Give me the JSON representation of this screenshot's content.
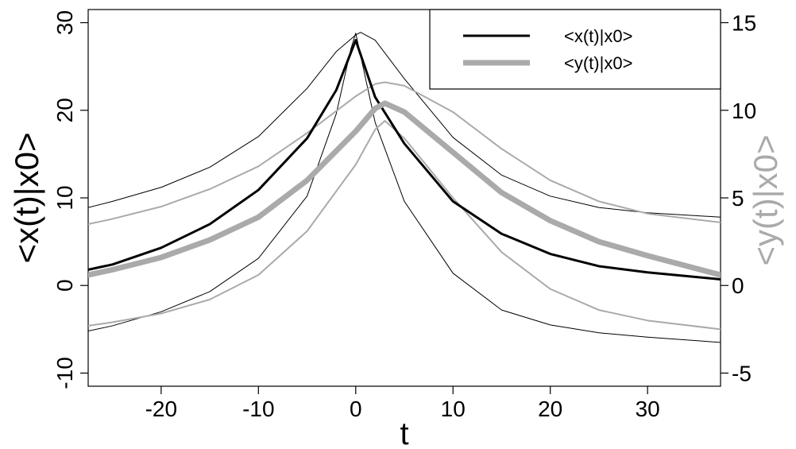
{
  "chart_data": {
    "type": "line",
    "xlabel": "t",
    "ylabel_left": "<x(t)|x0>",
    "ylabel_right": "<y(t)|x0>",
    "xlim": [
      -27.5,
      37.5
    ],
    "ylim_left": [
      -11.5,
      31.5
    ],
    "ylim_right": [
      -5.75,
      15.75
    ],
    "x_ticks": [
      -20,
      -10,
      0,
      10,
      20,
      30
    ],
    "x_tick_labels": [
      "-20",
      "-10",
      "0",
      "10",
      "20",
      "30"
    ],
    "y_left_ticks": [
      -10,
      0,
      10,
      20,
      30
    ],
    "y_left_tick_labels": [
      "-10",
      "0",
      "10",
      "20",
      "30"
    ],
    "y_right_ticks": [
      -5,
      0,
      5,
      10,
      15
    ],
    "y_right_tick_labels": [
      "-5",
      "0",
      "5",
      "10",
      "15"
    ],
    "legend": {
      "placement": "top-right",
      "entries": [
        {
          "label": "<x(t)|x0>",
          "color": "#000000",
          "style": "thick"
        },
        {
          "label": "<y(t)|x0>",
          "color": "#aaaaaa",
          "style": "thick"
        }
      ]
    },
    "colors": {
      "x_series": "#000000",
      "y_series": "#aaaaaa"
    },
    "series": [
      {
        "axis": "left",
        "role": "mean",
        "color": "#000000",
        "width": "thick",
        "x": [
          -27.5,
          -25,
          -20,
          -15,
          -10,
          -5,
          -2,
          0,
          2,
          5,
          10,
          15,
          20,
          25,
          30,
          37.5
        ],
        "y": [
          1.8,
          2.4,
          4.3,
          7.0,
          10.9,
          16.8,
          22.3,
          28.0,
          21.5,
          16.2,
          9.6,
          5.9,
          3.6,
          2.2,
          1.5,
          0.7
        ]
      },
      {
        "axis": "left",
        "role": "upper",
        "color": "#000000",
        "width": "thin",
        "x": [
          -27.5,
          -25,
          -20,
          -15,
          -10,
          -5,
          -2,
          0,
          0.5,
          2,
          5,
          10,
          15,
          20,
          25,
          30,
          37.5
        ],
        "y": [
          8.9,
          9.6,
          11.2,
          13.5,
          17.0,
          22.5,
          26.7,
          28.6,
          28.9,
          28.0,
          23.6,
          16.9,
          12.6,
          10.2,
          8.9,
          8.3,
          7.8
        ],
        "y_note_unused": ""
      },
      {
        "axis": "left",
        "role": "lower",
        "color": "#000000",
        "width": "thin",
        "x": [
          -27.5,
          -25,
          -20,
          -15,
          -10,
          -5,
          -2,
          -0.5,
          0,
          2,
          5,
          10,
          15,
          20,
          25,
          30,
          37.5
        ],
        "y": [
          -5.2,
          -4.6,
          -3.0,
          -0.7,
          3.1,
          10.2,
          19.6,
          27.0,
          28.8,
          18.6,
          9.6,
          1.4,
          -2.8,
          -4.5,
          -5.4,
          -5.9,
          -6.5
        ]
      },
      {
        "axis": "right",
        "role": "mean",
        "color": "#aaaaaa",
        "width": "thick",
        "x": [
          -27.5,
          -25,
          -20,
          -15,
          -10,
          -5,
          0,
          2,
          3,
          5,
          10,
          15,
          20,
          25,
          30,
          37.5
        ],
        "y": [
          0.6,
          0.9,
          1.6,
          2.6,
          3.9,
          6.0,
          8.8,
          10.1,
          10.4,
          9.9,
          7.6,
          5.3,
          3.7,
          2.5,
          1.7,
          0.6
        ]
      },
      {
        "axis": "right",
        "role": "upper",
        "color": "#aaaaaa",
        "width": "thin",
        "x": [
          -27.5,
          -25,
          -20,
          -15,
          -10,
          -5,
          0,
          2,
          3,
          5,
          10,
          15,
          20,
          25,
          30,
          37.5
        ],
        "y": [
          3.5,
          3.8,
          4.5,
          5.5,
          6.8,
          8.7,
          10.8,
          11.5,
          11.6,
          11.4,
          9.9,
          7.8,
          6.0,
          4.8,
          4.1,
          3.6
        ]
      },
      {
        "axis": "right",
        "role": "lower",
        "color": "#aaaaaa",
        "width": "thin",
        "x": [
          -27.5,
          -25,
          -20,
          -15,
          -10,
          -5,
          0,
          2,
          3,
          5,
          10,
          15,
          20,
          25,
          30,
          37.5
        ],
        "y": [
          -2.3,
          -2.1,
          -1.6,
          -0.8,
          0.6,
          3.1,
          6.9,
          8.9,
          9.4,
          8.4,
          5.0,
          1.9,
          -0.2,
          -1.4,
          -2.0,
          -2.5
        ]
      }
    ]
  }
}
